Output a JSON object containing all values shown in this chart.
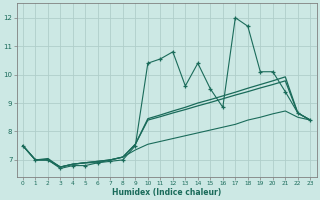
{
  "title": "",
  "xlabel": "Humidex (Indice chaleur)",
  "background_color": "#cce8e4",
  "grid_color": "#b0ceca",
  "line_color": "#1a6b5a",
  "x_data": [
    0,
    1,
    2,
    3,
    4,
    5,
    6,
    7,
    8,
    9,
    10,
    11,
    12,
    13,
    14,
    15,
    16,
    17,
    18,
    19,
    20,
    21,
    22,
    23
  ],
  "line1_y": [
    7.5,
    7.0,
    7.0,
    6.7,
    6.8,
    6.8,
    6.9,
    6.95,
    7.0,
    7.5,
    10.4,
    10.55,
    10.8,
    9.6,
    10.4,
    9.5,
    8.85,
    12.0,
    11.7,
    10.1,
    10.1,
    9.4,
    8.65,
    8.4
  ],
  "line2_y": [
    7.5,
    7.0,
    7.0,
    6.75,
    6.85,
    6.9,
    6.95,
    7.0,
    7.1,
    7.55,
    8.45,
    8.58,
    8.72,
    8.85,
    9.0,
    9.12,
    9.25,
    9.38,
    9.52,
    9.65,
    9.78,
    9.92,
    8.65,
    8.4
  ],
  "line3_y": [
    7.5,
    7.0,
    7.0,
    6.75,
    6.85,
    6.9,
    6.95,
    7.0,
    7.1,
    7.55,
    8.4,
    8.52,
    8.65,
    8.77,
    8.9,
    9.02,
    9.15,
    9.28,
    9.4,
    9.53,
    9.65,
    9.78,
    8.65,
    8.4
  ],
  "line4_y": [
    7.5,
    7.0,
    7.05,
    6.75,
    6.85,
    6.9,
    6.9,
    7.0,
    7.1,
    7.35,
    7.55,
    7.65,
    7.75,
    7.85,
    7.95,
    8.05,
    8.15,
    8.25,
    8.4,
    8.5,
    8.62,
    8.72,
    8.5,
    8.4
  ],
  "xlim": [
    -0.5,
    23.5
  ],
  "ylim": [
    6.4,
    12.5
  ],
  "yticks": [
    7,
    8,
    9,
    10,
    11,
    12
  ],
  "xticks": [
    0,
    1,
    2,
    3,
    4,
    5,
    6,
    7,
    8,
    9,
    10,
    11,
    12,
    13,
    14,
    15,
    16,
    17,
    18,
    19,
    20,
    21,
    22,
    23
  ]
}
